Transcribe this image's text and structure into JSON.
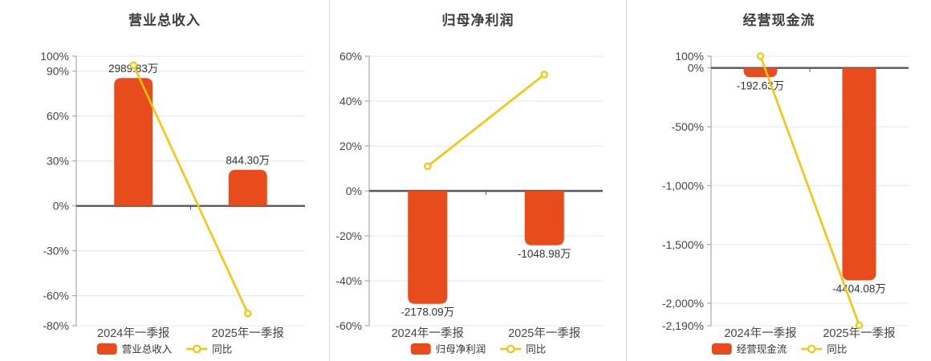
{
  "colors": {
    "bar": "#e84b1c",
    "line": "#f6c50e",
    "marker_fill": "#ffffff",
    "zero_axis": "#54575e",
    "grid": "#e2e5ee",
    "y_axis_line": "#989aa2",
    "tick_label": "#464646",
    "value_label": "#333333",
    "x_label": "#464646",
    "legend_label": "#333333",
    "title": "#3c3c3c",
    "panel_divider": "#d9d9dc",
    "background": "#ffffff"
  },
  "chart_data": [
    {
      "type": "combo",
      "title": "营业总收入",
      "categories": [
        "2024年一季报",
        "2025年一季报"
      ],
      "series": [
        {
          "name": "营业总收入",
          "type": "bar",
          "unit": "万",
          "values": [
            2989.83,
            844.3
          ],
          "labels": [
            "2989.83万",
            "844.30万"
          ],
          "axis_range": [
            -2800,
            3500
          ]
        },
        {
          "name": "同比",
          "type": "line",
          "unit": "%",
          "values": [
            94,
            -71.76
          ]
        }
      ],
      "pct_axis": {
        "min": -80,
        "max": 100,
        "ticks": [
          100,
          90,
          60,
          30,
          0,
          -30,
          -60,
          -80
        ],
        "tick_labels": [
          "100%",
          "90%",
          "60%",
          "30%",
          "0%",
          "-30%",
          "-60%",
          "-80%"
        ]
      },
      "grid": true,
      "legend_position": "bottom",
      "legend": [
        "营业总收入",
        "同比"
      ]
    },
    {
      "type": "combo",
      "title": "归母净利润",
      "categories": [
        "2024年一季报",
        "2025年一季报"
      ],
      "series": [
        {
          "name": "归母净利润",
          "type": "bar",
          "unit": "万",
          "values": [
            -2178.09,
            -1048.98
          ],
          "labels": [
            "-2178.09万",
            "-1048.98万"
          ],
          "axis_range": [
            -2600,
            2600
          ]
        },
        {
          "name": "同比",
          "type": "line",
          "unit": "%",
          "values": [
            11,
            51.84
          ]
        }
      ],
      "pct_axis": {
        "min": -60,
        "max": 60,
        "ticks": [
          60,
          40,
          20,
          0,
          -20,
          -40,
          -60
        ],
        "tick_labels": [
          "60%",
          "40%",
          "20%",
          "0%",
          "-20%",
          "-40%",
          "-60%"
        ]
      },
      "grid": true,
      "legend_position": "bottom",
      "legend": [
        "归母净利润",
        "同比"
      ]
    },
    {
      "type": "combo",
      "title": "经营现金流",
      "categories": [
        "2024年一季报",
        "2025年一季报"
      ],
      "series": [
        {
          "name": "经营现金流",
          "type": "bar",
          "unit": "万",
          "values": [
            -192.63,
            -4404.08
          ],
          "labels": [
            "-192.63万",
            "-4404.08万"
          ],
          "axis_range": [
            -5340,
            250
          ]
        },
        {
          "name": "同比",
          "type": "line",
          "unit": "%",
          "values": [
            100,
            -2186.3
          ]
        }
      ],
      "pct_axis": {
        "min": -2190,
        "max": 100,
        "ticks": [
          100,
          0,
          -500,
          -1000,
          -1500,
          -2000,
          -2190
        ],
        "tick_labels": [
          "100%",
          "0%",
          "-500%",
          "-1,000%",
          "-1,500%",
          "-2,000%",
          "-2,190%"
        ]
      },
      "grid": true,
      "legend_position": "bottom",
      "legend": [
        "经营现金流",
        "同比"
      ]
    }
  ]
}
